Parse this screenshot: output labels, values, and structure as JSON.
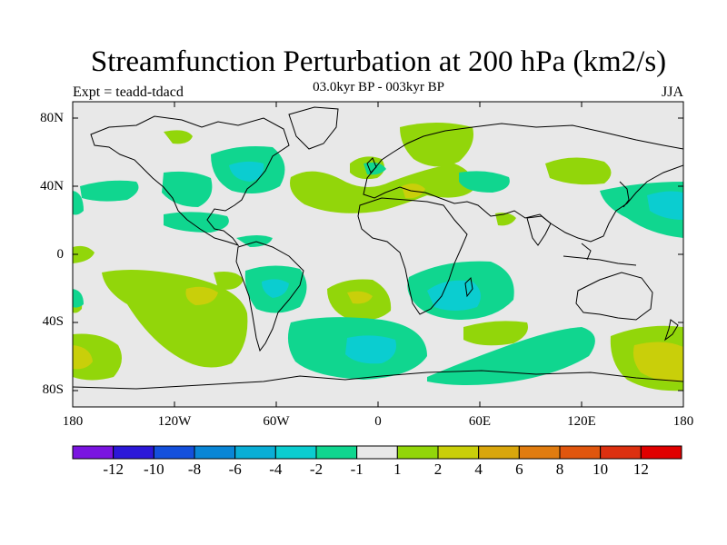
{
  "title": "Streamfunction Perturbation at 200 hPa (km2/s)",
  "subtitle": "03.0kyr BP - 003kyr BP",
  "left_label": "Expt = teadd-tdacd",
  "right_label": "JJA",
  "lat_labels": [
    "80N",
    "40N",
    "0",
    "40S",
    "80S"
  ],
  "lon_labels": [
    "180",
    "120W",
    "60W",
    "0",
    "60E",
    "120E",
    "180"
  ],
  "colorbar": {
    "colors": [
      "#7a14e0",
      "#2c18d8",
      "#1450dc",
      "#0a86d6",
      "#0aaed6",
      "#0bcdd0",
      "#10d68f",
      "#e8e8e8",
      "#92d60a",
      "#c9cf0a",
      "#d9a60c",
      "#e07c10",
      "#e0560e",
      "#dc3010",
      "#e00000"
    ],
    "labels": [
      "-12",
      "-10",
      "-8",
      "-6",
      "-4",
      "-2",
      "-1",
      "1",
      "2",
      "4",
      "6",
      "8",
      "10",
      "12"
    ]
  },
  "map": {
    "background": "#e8e8e8",
    "contour_colors": {
      "neg1": "#10d68f",
      "neg2": "#0bcdd0",
      "pos1": "#92d60a",
      "pos2": "#c9cf0a"
    }
  }
}
